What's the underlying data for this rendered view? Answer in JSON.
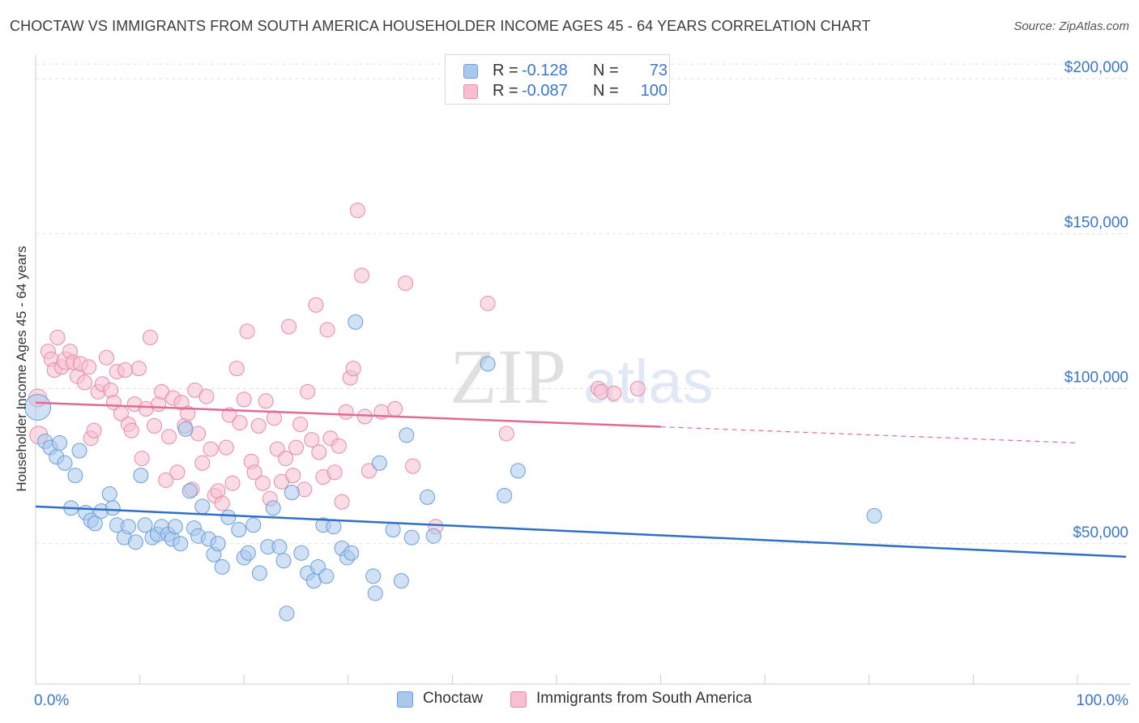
{
  "title": "CHOCTAW VS IMMIGRANTS FROM SOUTH AMERICA HOUSEHOLDER INCOME AGES 45 - 64 YEARS CORRELATION CHART",
  "source": "Source: ZipAtlas.com",
  "watermark": {
    "zip": "ZIP",
    "atlas": "atlas"
  },
  "legend": {
    "rows": [
      {
        "r_label": "R =",
        "r_value": "-0.128",
        "n_label": "N =",
        "n_value": "73",
        "color": "#a9c8ee",
        "border": "#6a9fd8"
      },
      {
        "r_label": "R =",
        "r_value": "-0.087",
        "n_label": "N =",
        "n_value": "100",
        "color": "#f7bfd0",
        "border": "#e88aa8"
      }
    ]
  },
  "bottom_legend": [
    {
      "label": "Choctaw",
      "color": "#a9c8ee",
      "border": "#6a9fd8"
    },
    {
      "label": "Immigrants from South America",
      "color": "#f7bfd0",
      "border": "#e88aa8"
    }
  ],
  "chart_data": {
    "type": "scatter",
    "title": "CHOCTAW VS IMMIGRANTS FROM SOUTH AMERICA HOUSEHOLDER INCOME AGES 45 - 64 YEARS CORRELATION CHART",
    "xlabel": "",
    "ylabel": "Householder Income Ages 45 - 64 years",
    "xlim": [
      0,
      100
    ],
    "ylim": [
      0,
      210000
    ],
    "x_tick_labels": [
      "0.0%",
      "100.0%"
    ],
    "y_ticks": [
      50000,
      100000,
      150000,
      200000
    ],
    "y_tick_labels": [
      "$50,000",
      "$100,000",
      "$150,000",
      "$200,000"
    ],
    "grid": true,
    "legend_position": "top-center",
    "series": [
      {
        "name": "Choctaw",
        "color": "#6a9fd8",
        "fill": "#a9c8ee",
        "trend": {
          "x": [
            0,
            100
          ],
          "y": [
            62000,
            46500
          ],
          "dashed_from": null
        },
        "points": [
          {
            "x": 0.2,
            "y": 94000,
            "r": 16
          },
          {
            "x": 0.9,
            "y": 83000
          },
          {
            "x": 1.4,
            "y": 81000
          },
          {
            "x": 2.3,
            "y": 82500
          },
          {
            "x": 2.0,
            "y": 78000
          },
          {
            "x": 2.8,
            "y": 76000
          },
          {
            "x": 3.8,
            "y": 72000
          },
          {
            "x": 4.2,
            "y": 80000
          },
          {
            "x": 3.4,
            "y": 61500
          },
          {
            "x": 4.8,
            "y": 60000
          },
          {
            "x": 5.3,
            "y": 57500
          },
          {
            "x": 5.7,
            "y": 56500
          },
          {
            "x": 6.3,
            "y": 60500
          },
          {
            "x": 7.1,
            "y": 66000
          },
          {
            "x": 7.4,
            "y": 61500
          },
          {
            "x": 7.8,
            "y": 56000
          },
          {
            "x": 8.5,
            "y": 52000
          },
          {
            "x": 8.9,
            "y": 55500
          },
          {
            "x": 9.6,
            "y": 50500
          },
          {
            "x": 10.1,
            "y": 72000
          },
          {
            "x": 10.5,
            "y": 56000
          },
          {
            "x": 11.2,
            "y": 52000
          },
          {
            "x": 11.7,
            "y": 53000
          },
          {
            "x": 12.1,
            "y": 55500
          },
          {
            "x": 12.7,
            "y": 53000
          },
          {
            "x": 13.1,
            "y": 51500
          },
          {
            "x": 13.4,
            "y": 55500
          },
          {
            "x": 13.9,
            "y": 50000
          },
          {
            "x": 14.4,
            "y": 87000
          },
          {
            "x": 14.8,
            "y": 67000
          },
          {
            "x": 15.2,
            "y": 55000
          },
          {
            "x": 15.6,
            "y": 52500
          },
          {
            "x": 16.0,
            "y": 62000
          },
          {
            "x": 16.6,
            "y": 51500
          },
          {
            "x": 17.1,
            "y": 46500
          },
          {
            "x": 17.5,
            "y": 50000
          },
          {
            "x": 17.9,
            "y": 42500
          },
          {
            "x": 18.5,
            "y": 58500
          },
          {
            "x": 19.5,
            "y": 54500
          },
          {
            "x": 20.0,
            "y": 45500
          },
          {
            "x": 20.4,
            "y": 47000
          },
          {
            "x": 20.9,
            "y": 56000
          },
          {
            "x": 21.5,
            "y": 40500
          },
          {
            "x": 22.3,
            "y": 49000
          },
          {
            "x": 22.8,
            "y": 61500
          },
          {
            "x": 23.4,
            "y": 49000
          },
          {
            "x": 23.8,
            "y": 44500
          },
          {
            "x": 24.1,
            "y": 27500
          },
          {
            "x": 24.6,
            "y": 66500
          },
          {
            "x": 25.5,
            "y": 47000
          },
          {
            "x": 26.1,
            "y": 40500
          },
          {
            "x": 26.7,
            "y": 38000
          },
          {
            "x": 27.1,
            "y": 42500
          },
          {
            "x": 27.6,
            "y": 56000
          },
          {
            "x": 27.9,
            "y": 39500
          },
          {
            "x": 28.6,
            "y": 55500
          },
          {
            "x": 29.4,
            "y": 48500
          },
          {
            "x": 29.9,
            "y": 45500
          },
          {
            "x": 30.3,
            "y": 47000
          },
          {
            "x": 30.7,
            "y": 121500
          },
          {
            "x": 32.4,
            "y": 39500
          },
          {
            "x": 32.6,
            "y": 34000
          },
          {
            "x": 33.0,
            "y": 76000
          },
          {
            "x": 34.3,
            "y": 54500
          },
          {
            "x": 35.1,
            "y": 38000
          },
          {
            "x": 35.6,
            "y": 85000
          },
          {
            "x": 36.1,
            "y": 52000
          },
          {
            "x": 37.6,
            "y": 65000
          },
          {
            "x": 38.2,
            "y": 52500
          },
          {
            "x": 43.4,
            "y": 108000
          },
          {
            "x": 45.0,
            "y": 65500
          },
          {
            "x": 46.3,
            "y": 73500
          },
          {
            "x": 80.5,
            "y": 59000
          }
        ]
      },
      {
        "name": "Immigrants from South America",
        "color": "#e88aa8",
        "fill": "#f7bfd0",
        "trend": {
          "x": [
            0,
            100
          ],
          "y": [
            95500,
            82500
          ],
          "dashed_from": 60
        },
        "points": [
          {
            "x": 0.2,
            "y": 97000,
            "r": 11
          },
          {
            "x": 0.3,
            "y": 85000,
            "r": 11
          },
          {
            "x": 1.2,
            "y": 112000
          },
          {
            "x": 1.5,
            "y": 109500
          },
          {
            "x": 1.8,
            "y": 106000
          },
          {
            "x": 2.1,
            "y": 116500
          },
          {
            "x": 2.5,
            "y": 107000
          },
          {
            "x": 2.9,
            "y": 109000,
            "r": 11
          },
          {
            "x": 3.3,
            "y": 112000
          },
          {
            "x": 3.6,
            "y": 108500
          },
          {
            "x": 4.0,
            "y": 104000
          },
          {
            "x": 4.3,
            "y": 108000
          },
          {
            "x": 4.7,
            "y": 102000
          },
          {
            "x": 5.1,
            "y": 107000
          },
          {
            "x": 5.3,
            "y": 84000
          },
          {
            "x": 5.6,
            "y": 86500
          },
          {
            "x": 6.0,
            "y": 99000
          },
          {
            "x": 6.4,
            "y": 101500
          },
          {
            "x": 6.8,
            "y": 110000
          },
          {
            "x": 7.2,
            "y": 99500
          },
          {
            "x": 7.5,
            "y": 95500
          },
          {
            "x": 7.8,
            "y": 105500
          },
          {
            "x": 8.2,
            "y": 92000
          },
          {
            "x": 8.6,
            "y": 106000
          },
          {
            "x": 8.9,
            "y": 88500
          },
          {
            "x": 9.2,
            "y": 86500
          },
          {
            "x": 9.5,
            "y": 95000
          },
          {
            "x": 9.9,
            "y": 106500
          },
          {
            "x": 10.2,
            "y": 77500
          },
          {
            "x": 10.6,
            "y": 93500
          },
          {
            "x": 11.0,
            "y": 116500
          },
          {
            "x": 11.4,
            "y": 88000
          },
          {
            "x": 11.8,
            "y": 95000
          },
          {
            "x": 12.1,
            "y": 99000
          },
          {
            "x": 12.5,
            "y": 70500
          },
          {
            "x": 12.8,
            "y": 84500
          },
          {
            "x": 13.2,
            "y": 97000
          },
          {
            "x": 13.6,
            "y": 73000
          },
          {
            "x": 14.0,
            "y": 95500
          },
          {
            "x": 14.3,
            "y": 88000
          },
          {
            "x": 14.6,
            "y": 92000
          },
          {
            "x": 15.0,
            "y": 67500
          },
          {
            "x": 15.3,
            "y": 99500
          },
          {
            "x": 15.6,
            "y": 85500
          },
          {
            "x": 16.0,
            "y": 76000
          },
          {
            "x": 16.4,
            "y": 97500
          },
          {
            "x": 16.8,
            "y": 80500
          },
          {
            "x": 17.2,
            "y": 65500
          },
          {
            "x": 17.5,
            "y": 67000
          },
          {
            "x": 17.9,
            "y": 63000
          },
          {
            "x": 18.3,
            "y": 81000
          },
          {
            "x": 18.6,
            "y": 91500
          },
          {
            "x": 18.9,
            "y": 69500
          },
          {
            "x": 19.3,
            "y": 106500
          },
          {
            "x": 19.6,
            "y": 89000
          },
          {
            "x": 20.0,
            "y": 96500
          },
          {
            "x": 20.3,
            "y": 118500
          },
          {
            "x": 20.7,
            "y": 76500
          },
          {
            "x": 21.0,
            "y": 73000
          },
          {
            "x": 21.4,
            "y": 88000
          },
          {
            "x": 21.8,
            "y": 69500
          },
          {
            "x": 22.1,
            "y": 96000
          },
          {
            "x": 22.5,
            "y": 64500
          },
          {
            "x": 22.9,
            "y": 90500
          },
          {
            "x": 23.2,
            "y": 80500
          },
          {
            "x": 23.6,
            "y": 70000
          },
          {
            "x": 24.0,
            "y": 77500
          },
          {
            "x": 24.3,
            "y": 120000
          },
          {
            "x": 24.7,
            "y": 72000
          },
          {
            "x": 25.0,
            "y": 81000
          },
          {
            "x": 25.4,
            "y": 88500
          },
          {
            "x": 25.8,
            "y": 67500
          },
          {
            "x": 26.1,
            "y": 99000
          },
          {
            "x": 26.5,
            "y": 83500
          },
          {
            "x": 26.9,
            "y": 127000
          },
          {
            "x": 27.2,
            "y": 79500
          },
          {
            "x": 27.6,
            "y": 71500
          },
          {
            "x": 28.0,
            "y": 119000
          },
          {
            "x": 28.3,
            "y": 84000
          },
          {
            "x": 28.7,
            "y": 73000
          },
          {
            "x": 29.1,
            "y": 81500
          },
          {
            "x": 29.4,
            "y": 63500
          },
          {
            "x": 29.8,
            "y": 92500
          },
          {
            "x": 30.2,
            "y": 103500
          },
          {
            "x": 30.5,
            "y": 106500
          },
          {
            "x": 30.9,
            "y": 157500
          },
          {
            "x": 31.3,
            "y": 136500
          },
          {
            "x": 31.6,
            "y": 91000
          },
          {
            "x": 32.0,
            "y": 73500
          },
          {
            "x": 33.2,
            "y": 92500
          },
          {
            "x": 34.5,
            "y": 93500
          },
          {
            "x": 35.5,
            "y": 134000
          },
          {
            "x": 36.2,
            "y": 75000
          },
          {
            "x": 38.4,
            "y": 55500
          },
          {
            "x": 43.4,
            "y": 127500
          },
          {
            "x": 45.2,
            "y": 85500
          },
          {
            "x": 54.0,
            "y": 100000
          },
          {
            "x": 54.3,
            "y": 99000
          },
          {
            "x": 55.5,
            "y": 98500
          },
          {
            "x": 57.8,
            "y": 100000
          }
        ]
      }
    ]
  }
}
